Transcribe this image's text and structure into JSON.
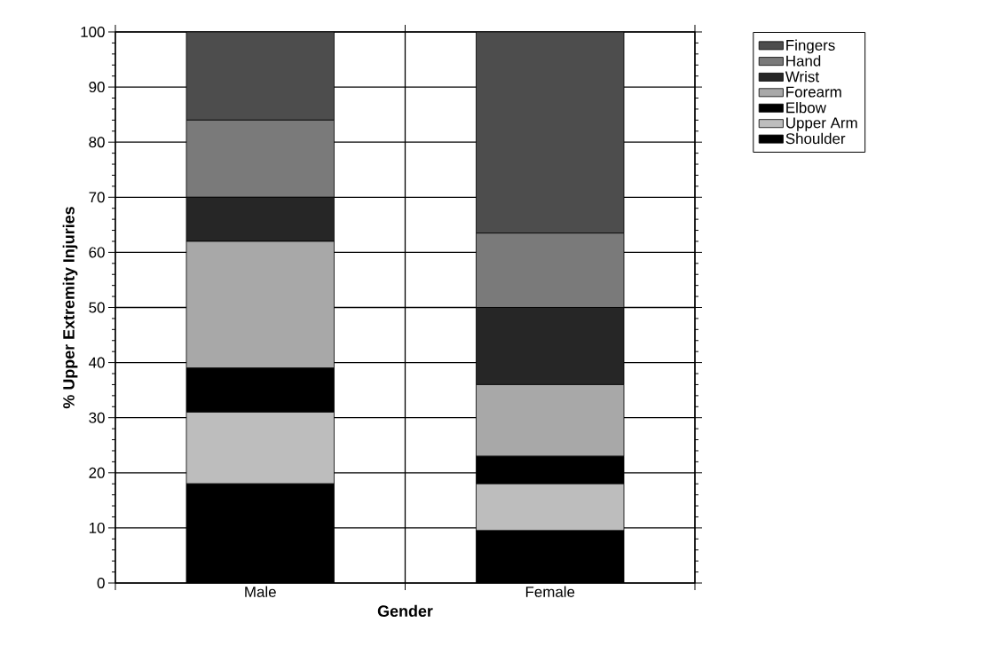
{
  "chart_data": {
    "type": "bar",
    "stacked": true,
    "xlabel": "Gender",
    "ylabel": "% Upper Extremity Injuries",
    "categories": [
      "Male",
      "Female"
    ],
    "series": [
      {
        "name": "Shoulder",
        "color": "#000000",
        "values": [
          18,
          9.5
        ]
      },
      {
        "name": "Upper Arm",
        "color": "#bdbdbd",
        "values": [
          13,
          8.5
        ]
      },
      {
        "name": "Elbow",
        "color": "#000000",
        "values": [
          8,
          5
        ]
      },
      {
        "name": "Forearm",
        "color": "#a8a8a8",
        "values": [
          23,
          13
        ]
      },
      {
        "name": "Wrist",
        "color": "#262626",
        "values": [
          8,
          14
        ]
      },
      {
        "name": "Hand",
        "color": "#7a7a7a",
        "values": [
          14,
          13.5
        ]
      },
      {
        "name": "Fingers",
        "color": "#4d4d4d",
        "values": [
          16,
          36.5
        ]
      }
    ],
    "ylim": [
      0,
      100
    ],
    "yticks": [
      0,
      10,
      20,
      30,
      40,
      50,
      60,
      70,
      80,
      90,
      100
    ],
    "grid": true,
    "legend": "top right"
  }
}
